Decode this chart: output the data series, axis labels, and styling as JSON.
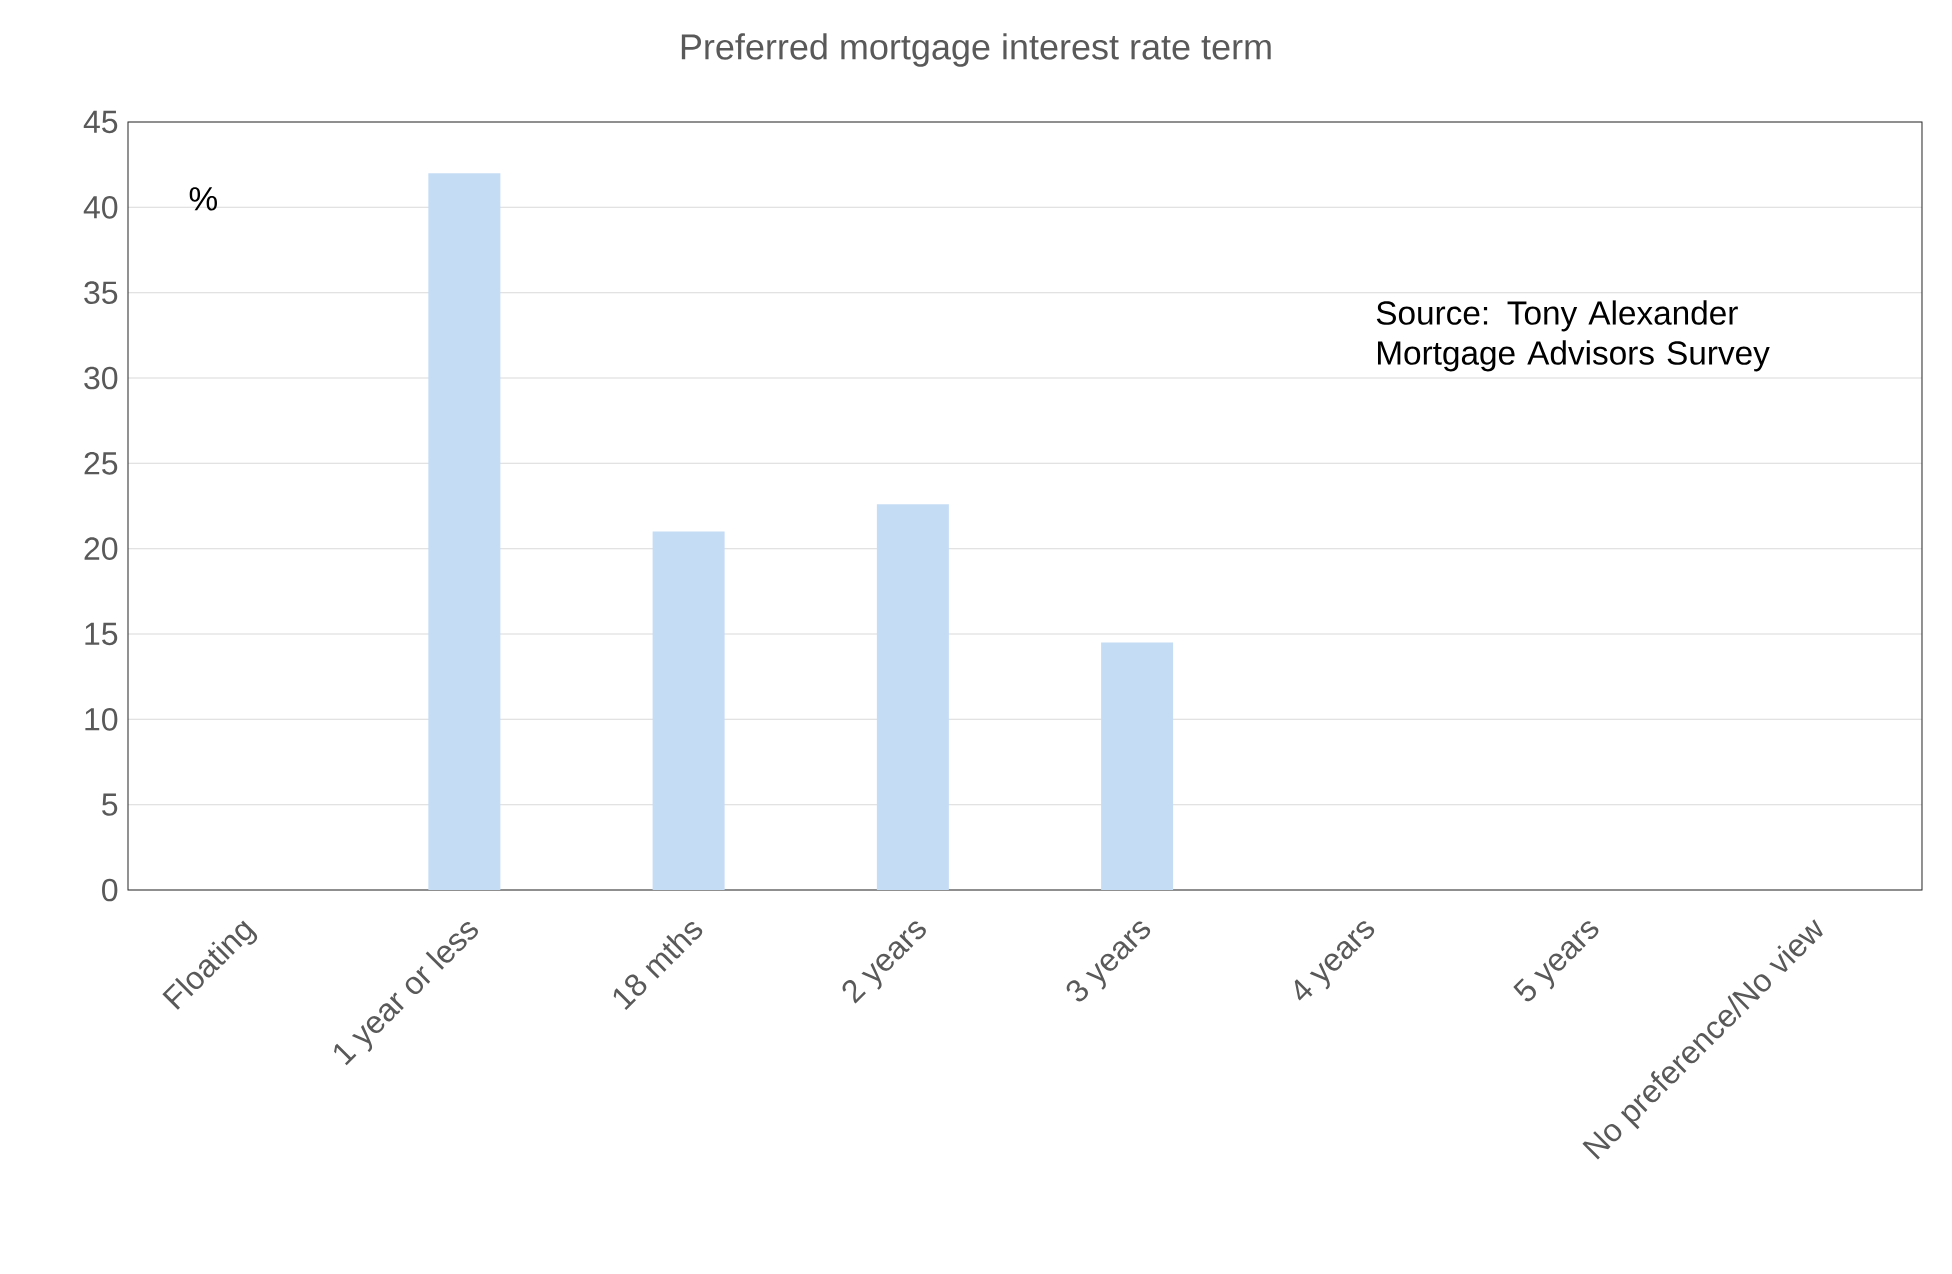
{
  "chart_data": {
    "type": "bar",
    "title": "Preferred mortgage interest rate term",
    "categories": [
      "Floating",
      "1 year or less",
      "18 mths",
      "2 years",
      "3 years",
      "4 years",
      "5 years",
      "No preference/No view"
    ],
    "values": [
      0,
      42,
      21,
      22.6,
      14.5,
      0,
      0,
      0
    ],
    "color": "#c5dcf5",
    "ylim": [
      0,
      45
    ],
    "yticks": [
      0,
      5,
      10,
      15,
      20,
      25,
      30,
      35,
      40,
      45
    ],
    "grid": "y",
    "annotations": [
      "%",
      "Source: Tony Alexander Mortgage Advisors Survey"
    ]
  }
}
